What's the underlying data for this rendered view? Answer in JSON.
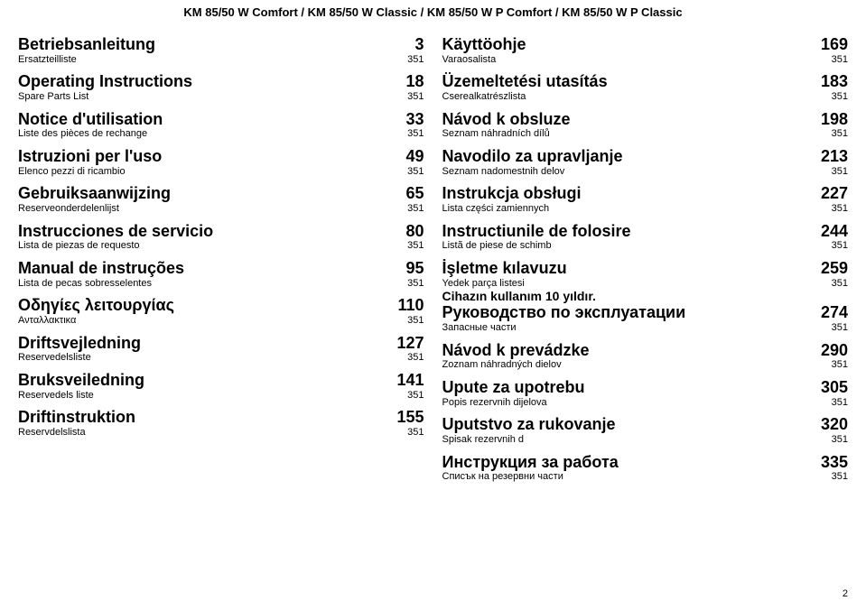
{
  "header": "KM 85/50 W Comfort / KM 85/50 W Classic / KM 85/50 W P Comfort / KM 85/50 W P Classic",
  "footer_page": "2",
  "left": [
    {
      "main": "Betriebsanleitung",
      "main_page": "3",
      "sub": "Ersatzteilliste",
      "sub_page": "351"
    },
    {
      "main": "Operating Instructions",
      "main_page": "18",
      "sub": "Spare Parts List",
      "sub_page": "351"
    },
    {
      "main": "Notice d'utilisation",
      "main_page": "33",
      "sub": "Liste des pièces de rechange",
      "sub_page": "351"
    },
    {
      "main": "Istruzioni per l'uso",
      "main_page": "49",
      "sub": "Elenco pezzi di ricambio",
      "sub_page": "351"
    },
    {
      "main": "Gebruiksaanwijzing",
      "main_page": "65",
      "sub": "Reserveonderdelenlijst",
      "sub_page": "351"
    },
    {
      "main": "Instrucciones de servicio",
      "main_page": "80",
      "sub": "Lista de piezas de requesto",
      "sub_page": "351"
    },
    {
      "main": "Manual de instruções",
      "main_page": "95",
      "sub": "Lista de pecas sobresselentes",
      "sub_page": "351"
    },
    {
      "main": "Οδηγίες λειτουργίας",
      "main_page": "110",
      "sub": "Ανταλλακτικα",
      "sub_page": "351"
    },
    {
      "main": "Driftsvejledning",
      "main_page": "127",
      "sub": "Reservedelsliste",
      "sub_page": "351"
    },
    {
      "main": "Bruksveiledning",
      "main_page": "141",
      "sub": "Reservedels liste",
      "sub_page": "351"
    },
    {
      "main": "Driftinstruktion",
      "main_page": "155",
      "sub": "Reservdelslista",
      "sub_page": "351"
    }
  ],
  "right": [
    {
      "main": "Käyttöohje",
      "main_page": "169",
      "sub": "Varaosalista",
      "sub_page": "351"
    },
    {
      "main": "Üzemeltetési utasítás",
      "main_page": "183",
      "sub": "Cserealkatrészlista",
      "sub_page": "351"
    },
    {
      "main": "Návod k obsluze",
      "main_page": "198",
      "sub": "Seznam náhradních dílů",
      "sub_page": "351"
    },
    {
      "main": "Navodilo za upravljanje",
      "main_page": "213",
      "sub": "Seznam nadomestnih delov",
      "sub_page": "351"
    },
    {
      "main": "Instrukcja obsługi",
      "main_page": "227",
      "sub": "Lista części zamiennych",
      "sub_page": "351"
    },
    {
      "main": "Instructiunile de folosire",
      "main_page": "244",
      "sub": "Listã de piese de schimb",
      "sub_page": "351"
    },
    {
      "main": "İşletme kılavuzu",
      "main_page": "259",
      "sub": "Yedek parça listesi",
      "sub_page": "351",
      "sub2": "Cihazın kullanım 10 yıldır."
    },
    {
      "main": "Руководство по эксплуатации",
      "main_page": "274",
      "sub": "Запасные части",
      "sub_page": "351",
      "tight": true
    },
    {
      "main": "Návod k prevádzke",
      "main_page": "290",
      "sub": "Zoznam náhradných dielov",
      "sub_page": "351"
    },
    {
      "main": "Upute za upotrebu",
      "main_page": "305",
      "sub": "Popis rezervnih dijelova",
      "sub_page": "351"
    },
    {
      "main": "Uputstvo za rukovanje",
      "main_page": "320",
      "sub": "Spisak rezervnih d",
      "sub_page": "351"
    },
    {
      "main": "Инструкция за работа",
      "main_page": "335",
      "sub": "Списък на резервни части",
      "sub_page": "351"
    }
  ]
}
